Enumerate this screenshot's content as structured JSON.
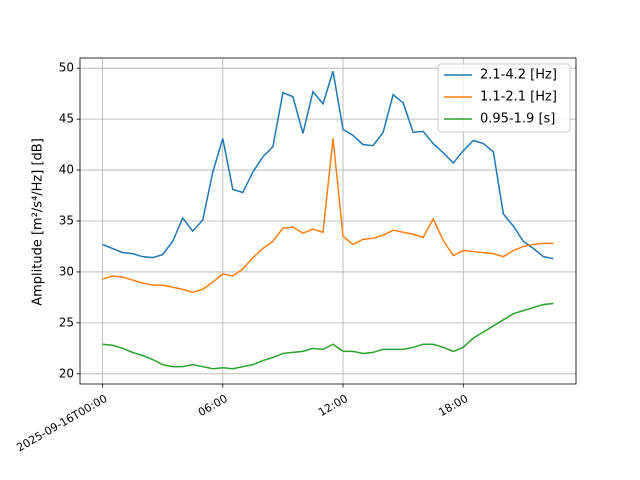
{
  "chart_data": {
    "type": "line",
    "ylabel": "Amplitude [m²/s⁴/Hz] [dB]",
    "x": [
      0,
      0.5,
      1,
      1.5,
      2,
      2.5,
      3,
      3.5,
      4,
      4.5,
      5,
      5.5,
      6,
      6.5,
      7,
      7.5,
      8,
      8.5,
      9,
      9.5,
      10,
      10.5,
      11,
      11.5,
      12,
      12.5,
      13,
      13.5,
      14,
      14.5,
      15,
      15.5,
      16,
      16.5,
      17,
      17.5,
      18,
      18.5,
      19,
      19.5,
      20,
      20.5,
      21,
      21.5,
      22,
      22.5
    ],
    "series": [
      {
        "name": "2.1-4.2 [Hz]",
        "color": "#1f77b4",
        "values": [
          32.7,
          32.3,
          31.9,
          31.8,
          31.5,
          31.4,
          31.7,
          33.0,
          35.3,
          34.0,
          35.1,
          39.8,
          43.1,
          38.1,
          37.8,
          39.8,
          41.3,
          42.3,
          47.6,
          47.2,
          43.6,
          47.7,
          46.5,
          49.7,
          44.0,
          43.4,
          42.5,
          42.4,
          43.7,
          47.4,
          46.6,
          43.7,
          43.8,
          42.6,
          41.7,
          40.7,
          41.9,
          42.9,
          42.6,
          41.8,
          35.7,
          34.5,
          33.0,
          32.3,
          31.5,
          31.3
        ]
      },
      {
        "name": "1.1-2.1 [Hz]",
        "color": "#ff7f0e",
        "values": [
          29.3,
          29.6,
          29.5,
          29.2,
          28.9,
          28.7,
          28.7,
          28.5,
          28.3,
          28.0,
          28.3,
          29.0,
          29.8,
          29.6,
          30.3,
          31.4,
          32.3,
          33.0,
          34.3,
          34.4,
          33.8,
          34.2,
          33.9,
          43.1,
          33.5,
          32.7,
          33.2,
          33.3,
          33.6,
          34.1,
          33.9,
          33.7,
          33.4,
          35.2,
          33.1,
          31.6,
          32.1,
          32.0,
          31.9,
          31.8,
          31.5,
          32.1,
          32.5,
          32.7,
          32.8,
          32.8
        ]
      },
      {
        "name": "0.95-1.9 [s]",
        "color": "#2ca02c",
        "values": [
          22.9,
          22.8,
          22.5,
          22.1,
          21.8,
          21.4,
          20.9,
          20.7,
          20.7,
          20.9,
          20.7,
          20.5,
          20.6,
          20.5,
          20.7,
          20.9,
          21.3,
          21.6,
          22.0,
          22.1,
          22.2,
          22.5,
          22.4,
          22.9,
          22.2,
          22.2,
          22.0,
          22.1,
          22.4,
          22.4,
          22.4,
          22.6,
          22.9,
          22.9,
          22.6,
          22.2,
          22.6,
          23.5,
          24.1,
          24.7,
          25.3,
          25.9,
          26.2,
          26.5,
          26.8,
          26.9
        ]
      }
    ],
    "xlim": [
      -1.125,
      23.625
    ],
    "xticks": [
      {
        "value": 0,
        "label": "2025-09-16T00:00"
      },
      {
        "value": 6,
        "label": "06:00"
      },
      {
        "value": 12,
        "label": "12:00"
      },
      {
        "value": 18,
        "label": "18:00"
      }
    ],
    "ylim": [
      19.0,
      51.0
    ],
    "yticks": [
      20,
      25,
      30,
      35,
      40,
      45,
      50
    ],
    "grid": true,
    "legend": "upper right"
  }
}
